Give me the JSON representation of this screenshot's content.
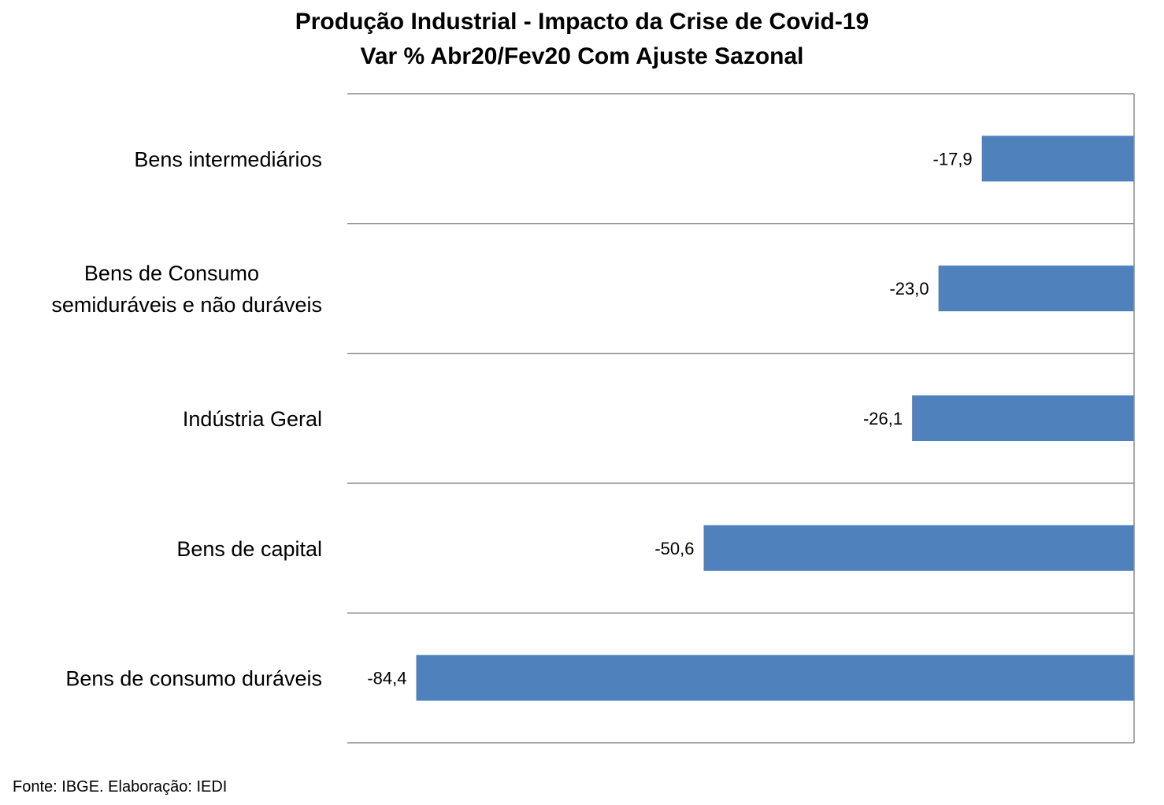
{
  "title": "Produção Industrial - Impacto da Crise de Covid-19",
  "subtitle": "Var % Abr20/Fev20 Com Ajuste Sazonal",
  "source": "Fonte: IBGE. Elaboração: IEDI",
  "chart_data": {
    "type": "bar",
    "orientation": "horizontal",
    "title": "Produção Industrial - Impacto da Crise de Covid-19",
    "subtitle": "Var % Abr20/Fev20 Com Ajuste Sazonal",
    "categories": [
      [
        "Bens intermediários"
      ],
      [
        "Bens de Consumo",
        "semiduráveis e não duráveis"
      ],
      [
        "Indústria Geral"
      ],
      [
        "Bens de capital"
      ],
      [
        "Bens de consumo duráveis"
      ]
    ],
    "values": [
      -17.9,
      -23.0,
      -26.1,
      -50.6,
      -84.4
    ],
    "data_labels": [
      "-17,9",
      "-23,0",
      "-26,1",
      "-50,6",
      "-84,4"
    ],
    "xlim": [
      -92.5,
      0
    ],
    "bar_color": "#4F81BD",
    "gridlines": "horizontal separators between categories",
    "legend": "none"
  }
}
